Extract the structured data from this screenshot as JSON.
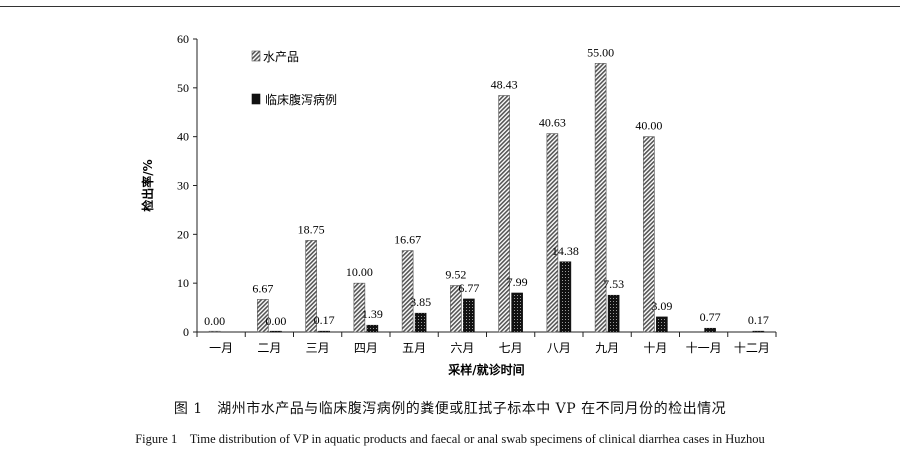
{
  "caption_cn": "图 1　湖州市水产品与临床腹泻病例的粪便或肛拭子标本中 VP 在不同月份的检出情况",
  "caption_en": "Figure 1　Time distribution of VP in aquatic products and faecal or anal swab specimens of clinical diarrhea cases in Huzhou",
  "chart_data": {
    "type": "bar",
    "title": "",
    "xlabel": "采样/就诊时间",
    "ylabel": "检出率/%",
    "ylim": [
      0,
      60
    ],
    "yticks": [
      0,
      10,
      20,
      30,
      40,
      50,
      60
    ],
    "grid": false,
    "legend_position": "top-left",
    "categories": [
      "一月",
      "二月",
      "三月",
      "四月",
      "五月",
      "六月",
      "七月",
      "八月",
      "九月",
      "十月",
      "十一月",
      "十二月"
    ],
    "series": [
      {
        "name": "水产品",
        "pattern": "diagonal-hatch",
        "color": "#555555",
        "values": [
          0.0,
          6.67,
          18.75,
          10.0,
          16.67,
          9.52,
          48.43,
          40.63,
          55.0,
          40.0,
          null,
          null
        ],
        "labels": [
          "0.00",
          "6.67",
          "18.75",
          "10.00",
          "16.67",
          "9.52",
          "48.43",
          "40.63",
          "55.00",
          "40.00",
          null,
          null
        ]
      },
      {
        "name": "临床腹泻病例",
        "pattern": "dense-dots",
        "color": "#111111",
        "values": [
          null,
          0.0,
          0.17,
          1.39,
          3.85,
          6.77,
          7.99,
          14.38,
          7.53,
          3.09,
          0.77,
          0.17
        ],
        "labels": [
          null,
          "0.00",
          "0.17",
          "1.39",
          "3.85",
          "6.77",
          "7.99",
          "14.38",
          "7.53",
          "3.09",
          "0.77",
          "0.17"
        ]
      }
    ]
  }
}
